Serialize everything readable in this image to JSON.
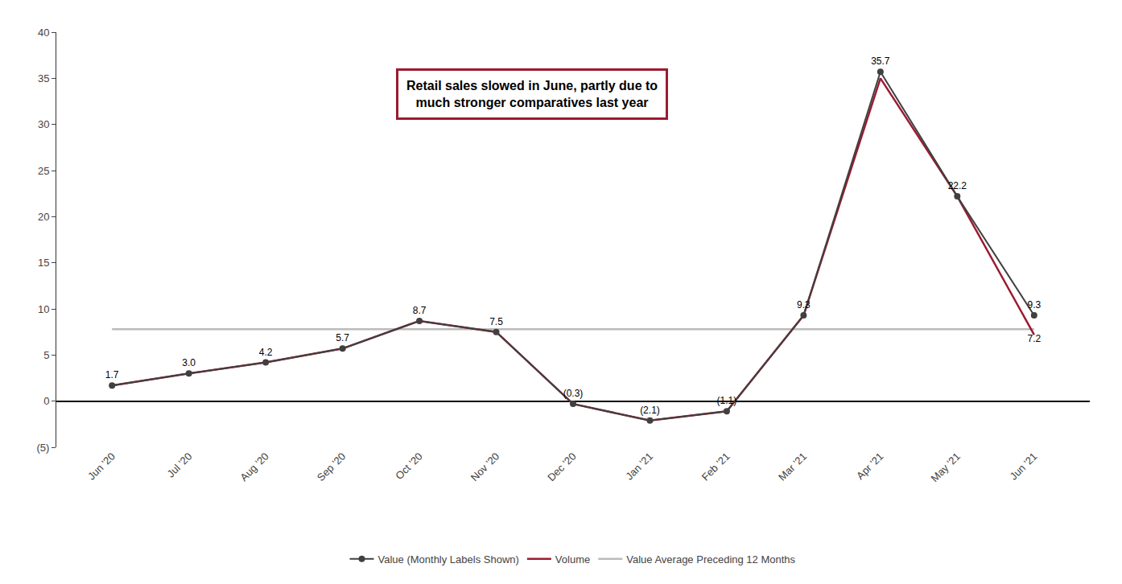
{
  "chart_data": {
    "type": "line",
    "categories": [
      "Jun '20",
      "Jul '20",
      "Aug '20",
      "Sep '20",
      "Oct '20",
      "Nov '20",
      "Dec '20",
      "Jan '21",
      "Feb '21",
      "Mar '21",
      "Apr '21",
      "May '21",
      "Jun '21"
    ],
    "series": [
      {
        "name": "Value (Monthly Labels Shown)",
        "color": "#404040",
        "marker": "circle",
        "line_style": "solid",
        "values": [
          1.7,
          3.0,
          4.2,
          5.7,
          8.7,
          7.5,
          -0.3,
          -2.1,
          -1.1,
          9.3,
          35.7,
          22.2,
          9.3
        ],
        "value_labels": [
          "1.7",
          "3.0",
          "4.2",
          "5.7",
          "8.7",
          "7.5",
          "(0.3)",
          "(2.1)",
          "(1.1)",
          "9.3",
          "35.7",
          "22.2",
          "9.3"
        ]
      },
      {
        "name": "Volume",
        "color": "#9B1B30",
        "line_style": "solid",
        "values": [
          1.7,
          3.0,
          4.2,
          5.7,
          8.7,
          7.5,
          -0.3,
          -2.1,
          -1.1,
          9.3,
          35.0,
          22.2,
          7.2
        ],
        "value_labels": [
          null,
          null,
          null,
          null,
          null,
          null,
          null,
          null,
          null,
          null,
          null,
          null,
          "7.2"
        ]
      }
    ],
    "average": {
      "name": "Value Average Preceding 12 Months",
      "value": 7.8,
      "color": "#BBBBBB"
    },
    "annotation": "Retail sales slowed in June, partly due to\nmuch stronger comparatives last year",
    "annotation_color": "#9B1B30",
    "ylim": [
      -5,
      40
    ],
    "yticks": [
      {
        "value": -5,
        "label": "(5)"
      },
      0,
      5,
      10,
      15,
      20,
      25,
      30,
      35,
      40
    ],
    "grid": false,
    "legend": "bottom",
    "data_labels": true
  }
}
